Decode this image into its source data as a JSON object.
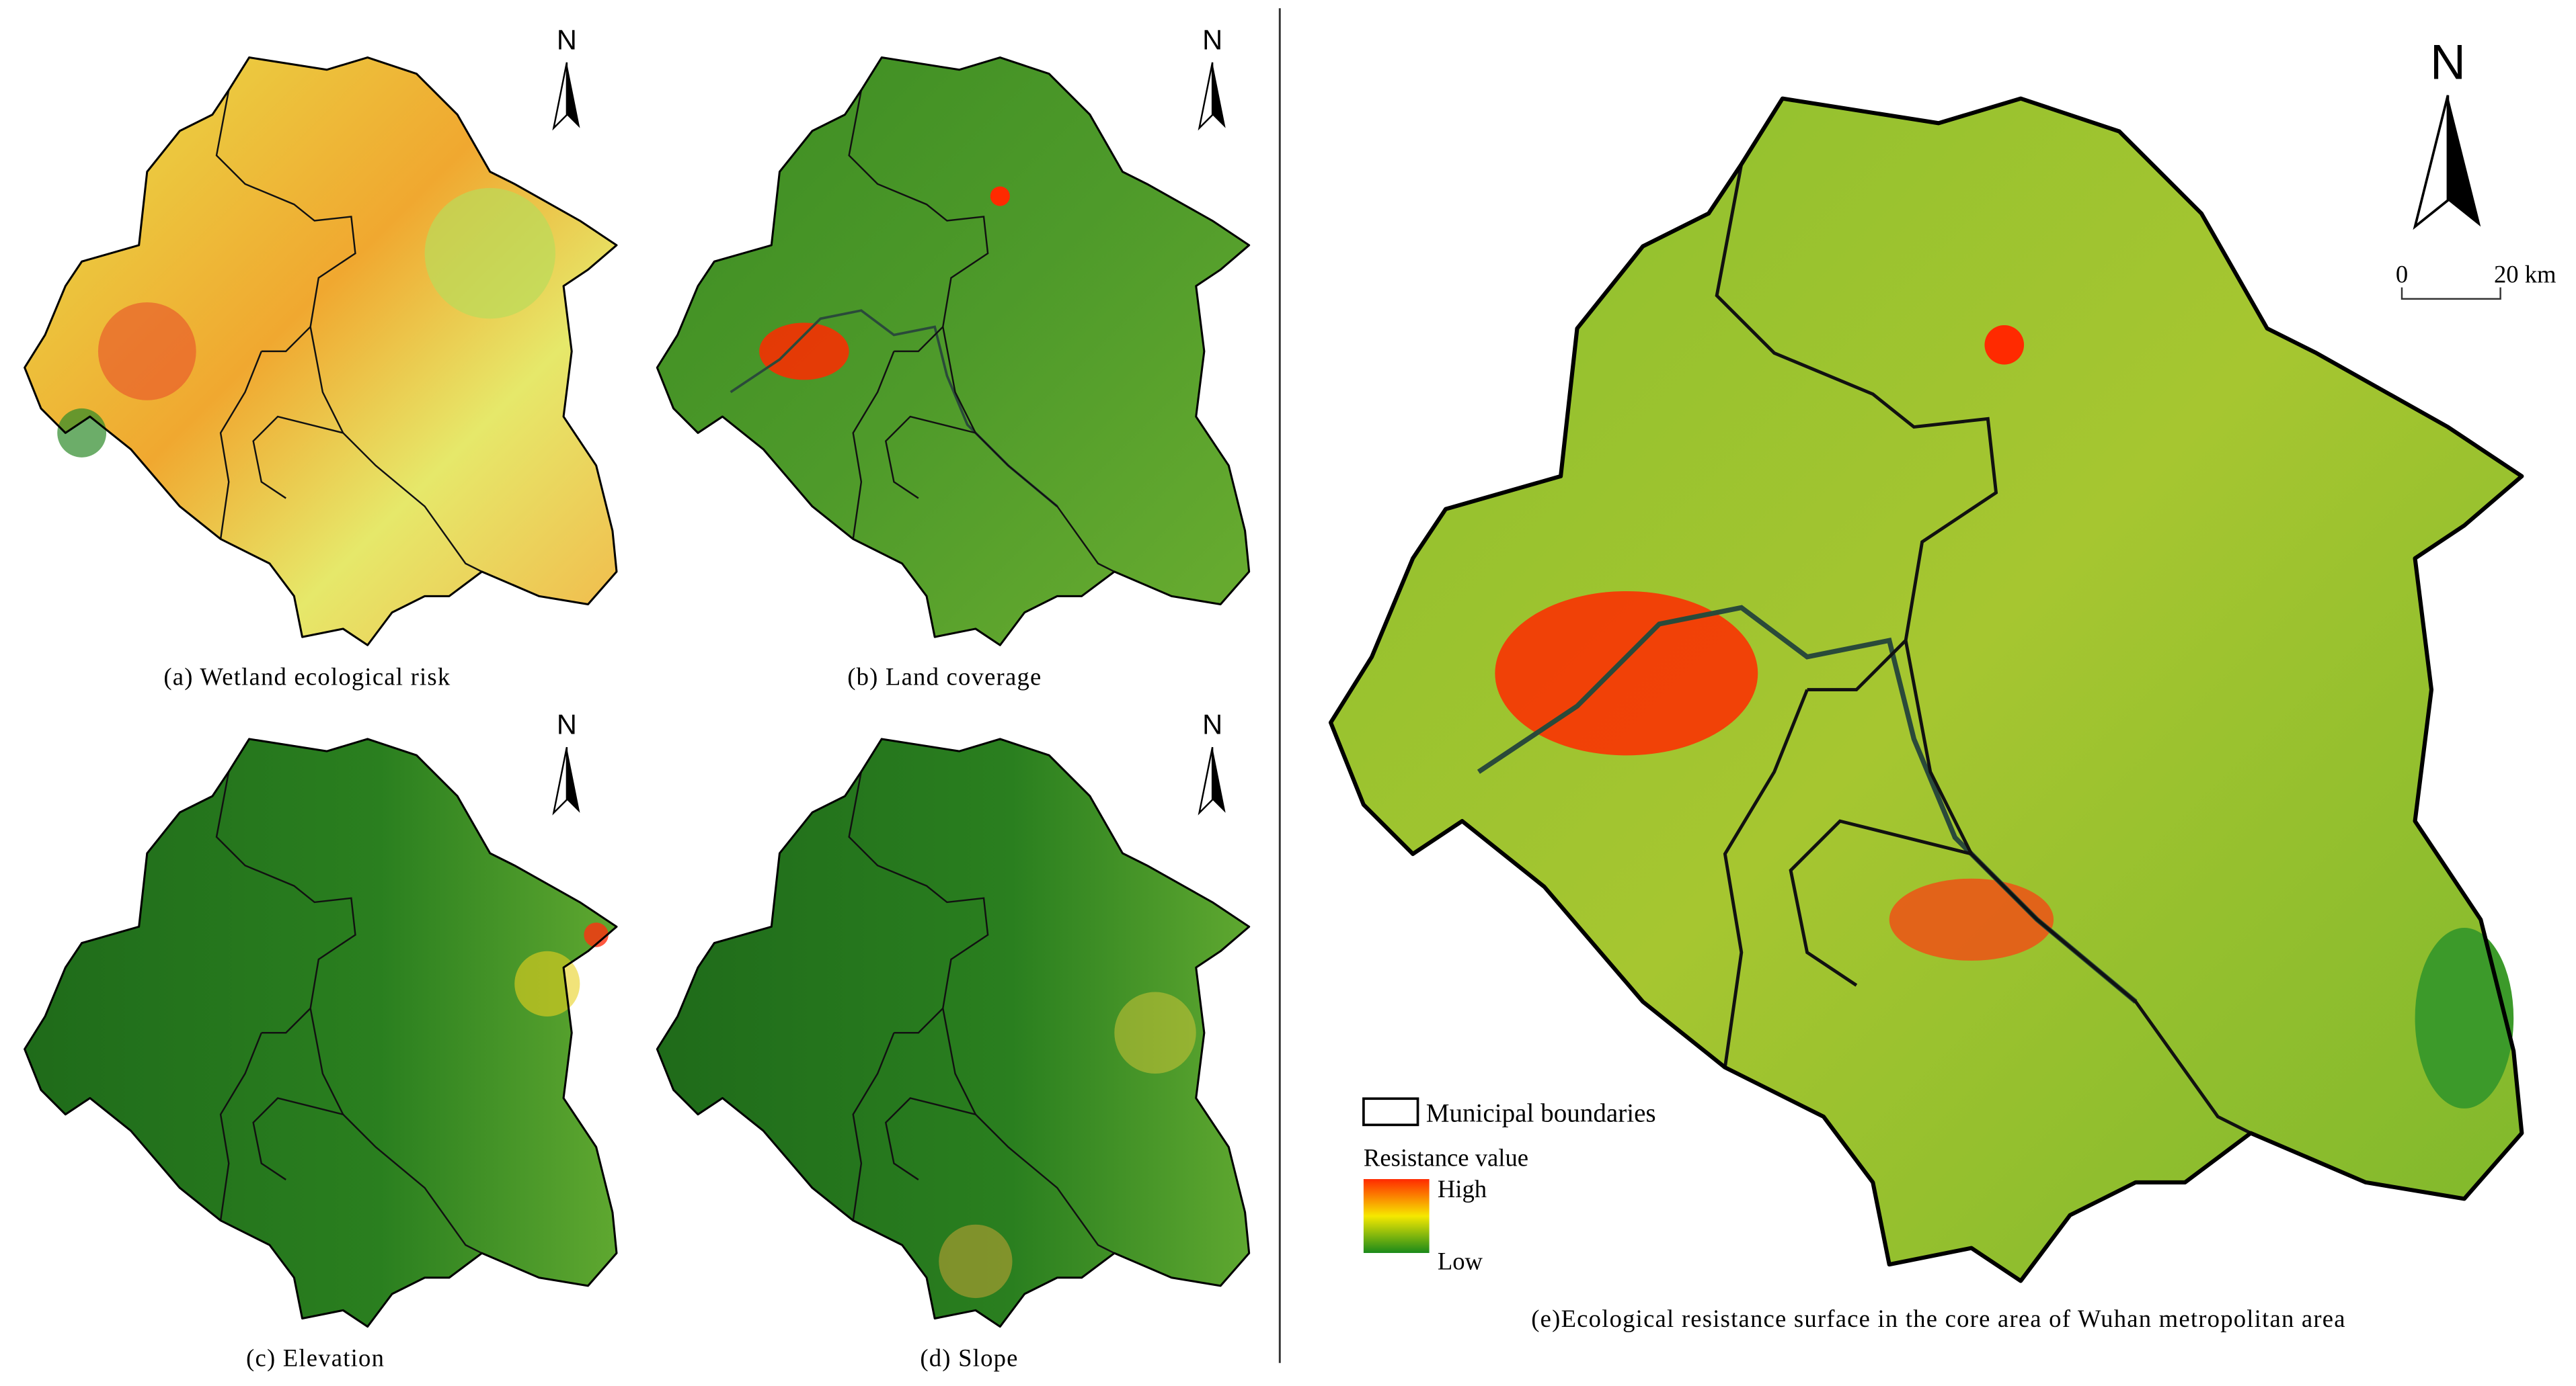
{
  "panels": [
    {
      "caption": "(a) Wetland ecological risk",
      "north": "N"
    },
    {
      "caption": "(b) Land coverage",
      "north": "N"
    },
    {
      "caption": "(c) Elevation",
      "north": "N"
    },
    {
      "caption": "(d) Slope",
      "north": "N"
    },
    {
      "caption": "(e)Ecological resistance surface in the core area of Wuhan metropolitan area",
      "north": "N"
    }
  ],
  "legend": {
    "boundary_label": "Municipal boundaries",
    "title": "Resistance value",
    "high": "High",
    "low": "Low"
  },
  "scale_bar": {
    "start": "0",
    "end": "20 km"
  }
}
